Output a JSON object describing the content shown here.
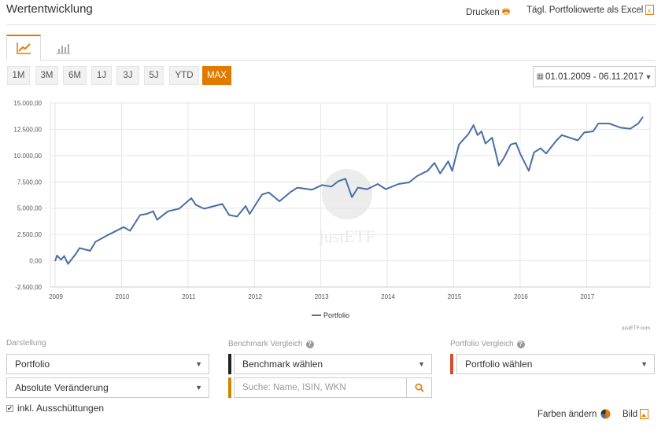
{
  "header": {
    "title": "Wertentwicklung",
    "print_label": "Drucken",
    "excel_label": "Tägl. Portfoliowerte als Excel"
  },
  "tabs": [
    {
      "icon": "line-chart-icon",
      "active": true
    },
    {
      "icon": "bar-chart-icon",
      "active": false
    }
  ],
  "ranges": [
    "1M",
    "3M",
    "6M",
    "1J",
    "3J",
    "5J",
    "YTD",
    "MAX"
  ],
  "active_range": "MAX",
  "date_range": "01.01.2009 - 06.11.2017",
  "accent": "#e07b00",
  "chart_data": {
    "type": "line",
    "title": "",
    "xlabel": "",
    "ylabel": "",
    "ylim": [
      -2500,
      15000
    ],
    "xlim": [
      "2008-12-06",
      "2017-12-16"
    ],
    "yticks": [
      "15.000,00",
      "12.500,00",
      "10.000,00",
      "7.500,00",
      "5.000,00",
      "2.500,00",
      "0,00",
      "-2.500,00"
    ],
    "ytick_values": [
      15000,
      12500,
      10000,
      7500,
      5000,
      2500,
      0,
      -2500
    ],
    "xticks": [
      "2009",
      "2010",
      "2011",
      "2012",
      "2013",
      "2014",
      "2015",
      "2016",
      "2017"
    ],
    "grid": true,
    "legend": "bottom",
    "credit": "justETF.com",
    "watermark": "justETF",
    "series": [
      {
        "name": "Portfolio",
        "color": "#4a6fa5",
        "points": [
          [
            "2009-01-02",
            0
          ],
          [
            "2009-01-12",
            500
          ],
          [
            "2009-02-03",
            100
          ],
          [
            "2009-02-20",
            450
          ],
          [
            "2009-03-13",
            -300
          ],
          [
            "2009-04-27",
            700
          ],
          [
            "2009-05-15",
            1200
          ],
          [
            "2009-07-13",
            950
          ],
          [
            "2009-08-11",
            1800
          ],
          [
            "2009-10-19",
            2450
          ],
          [
            "2010-01-12",
            3200
          ],
          [
            "2010-02-17",
            2850
          ],
          [
            "2010-04-13",
            4350
          ],
          [
            "2010-05-19",
            4450
          ],
          [
            "2010-06-24",
            4700
          ],
          [
            "2010-07-16",
            3900
          ],
          [
            "2010-09-13",
            4700
          ],
          [
            "2010-11-14",
            4950
          ],
          [
            "2011-01-19",
            5950
          ],
          [
            "2011-02-14",
            5300
          ],
          [
            "2011-04-01",
            4950
          ],
          [
            "2011-05-26",
            5200
          ],
          [
            "2011-07-09",
            5400
          ],
          [
            "2011-08-15",
            4350
          ],
          [
            "2011-09-28",
            4200
          ],
          [
            "2011-11-14",
            5200
          ],
          [
            "2011-12-06",
            4450
          ],
          [
            "2012-01-15",
            5550
          ],
          [
            "2012-02-13",
            6300
          ],
          [
            "2012-03-20",
            6500
          ],
          [
            "2012-05-18",
            5650
          ],
          [
            "2012-07-19",
            6550
          ],
          [
            "2012-08-25",
            6950
          ],
          [
            "2012-11-13",
            6750
          ],
          [
            "2013-01-08",
            7200
          ],
          [
            "2013-02-28",
            7050
          ],
          [
            "2013-04-06",
            7550
          ],
          [
            "2013-05-16",
            7800
          ],
          [
            "2013-06-21",
            6050
          ],
          [
            "2013-07-24",
            6950
          ],
          [
            "2013-09-13",
            6800
          ],
          [
            "2013-11-10",
            7300
          ],
          [
            "2013-12-24",
            6800
          ],
          [
            "2014-03-04",
            7300
          ],
          [
            "2014-05-01",
            7450
          ],
          [
            "2014-06-14",
            8050
          ],
          [
            "2014-08-11",
            8550
          ],
          [
            "2014-09-17",
            9300
          ],
          [
            "2014-10-19",
            8300
          ],
          [
            "2014-12-02",
            9450
          ],
          [
            "2014-12-24",
            8550
          ],
          [
            "2015-01-30",
            11050
          ],
          [
            "2015-03-23",
            12050
          ],
          [
            "2015-04-20",
            12900
          ],
          [
            "2015-05-12",
            11950
          ],
          [
            "2015-06-03",
            12300
          ],
          [
            "2015-06-25",
            11150
          ],
          [
            "2015-07-31",
            11700
          ],
          [
            "2015-09-06",
            9050
          ],
          [
            "2015-10-05",
            9800
          ],
          [
            "2015-11-10",
            11050
          ],
          [
            "2015-12-09",
            11200
          ],
          [
            "2016-01-01",
            10200
          ],
          [
            "2016-02-18",
            8550
          ],
          [
            "2016-03-18",
            10300
          ],
          [
            "2016-04-23",
            10700
          ],
          [
            "2016-05-23",
            10200
          ],
          [
            "2016-07-20",
            11450
          ],
          [
            "2016-08-18",
            11950
          ],
          [
            "2016-11-14",
            11450
          ],
          [
            "2016-12-20",
            12200
          ],
          [
            "2017-02-06",
            12300
          ],
          [
            "2017-03-07",
            13050
          ],
          [
            "2017-05-05",
            13050
          ],
          [
            "2017-07-09",
            12650
          ],
          [
            "2017-08-29",
            12550
          ],
          [
            "2017-10-12",
            13050
          ],
          [
            "2017-11-06",
            13650
          ]
        ]
      }
    ]
  },
  "controls": {
    "darstellung_label": "Darstellung",
    "darstellung_value": "Portfolio",
    "mode_value": "Absolute Veränderung",
    "checkbox_label": "inkl. Ausschüttungen",
    "checkbox_checked": true,
    "benchmark_label": "Benchmark Vergleich",
    "benchmark_value": "Benchmark wählen",
    "benchmark_color": "#222222",
    "search_placeholder": "Suche: Name, ISIN, WKN",
    "search_color": "#c98a00",
    "portfolio_label": "Portfolio Vergleich",
    "portfolio_value": "Portfolio wählen",
    "portfolio_color": "#d0512a",
    "colors_label": "Farben ändern",
    "image_label": "Bild"
  }
}
